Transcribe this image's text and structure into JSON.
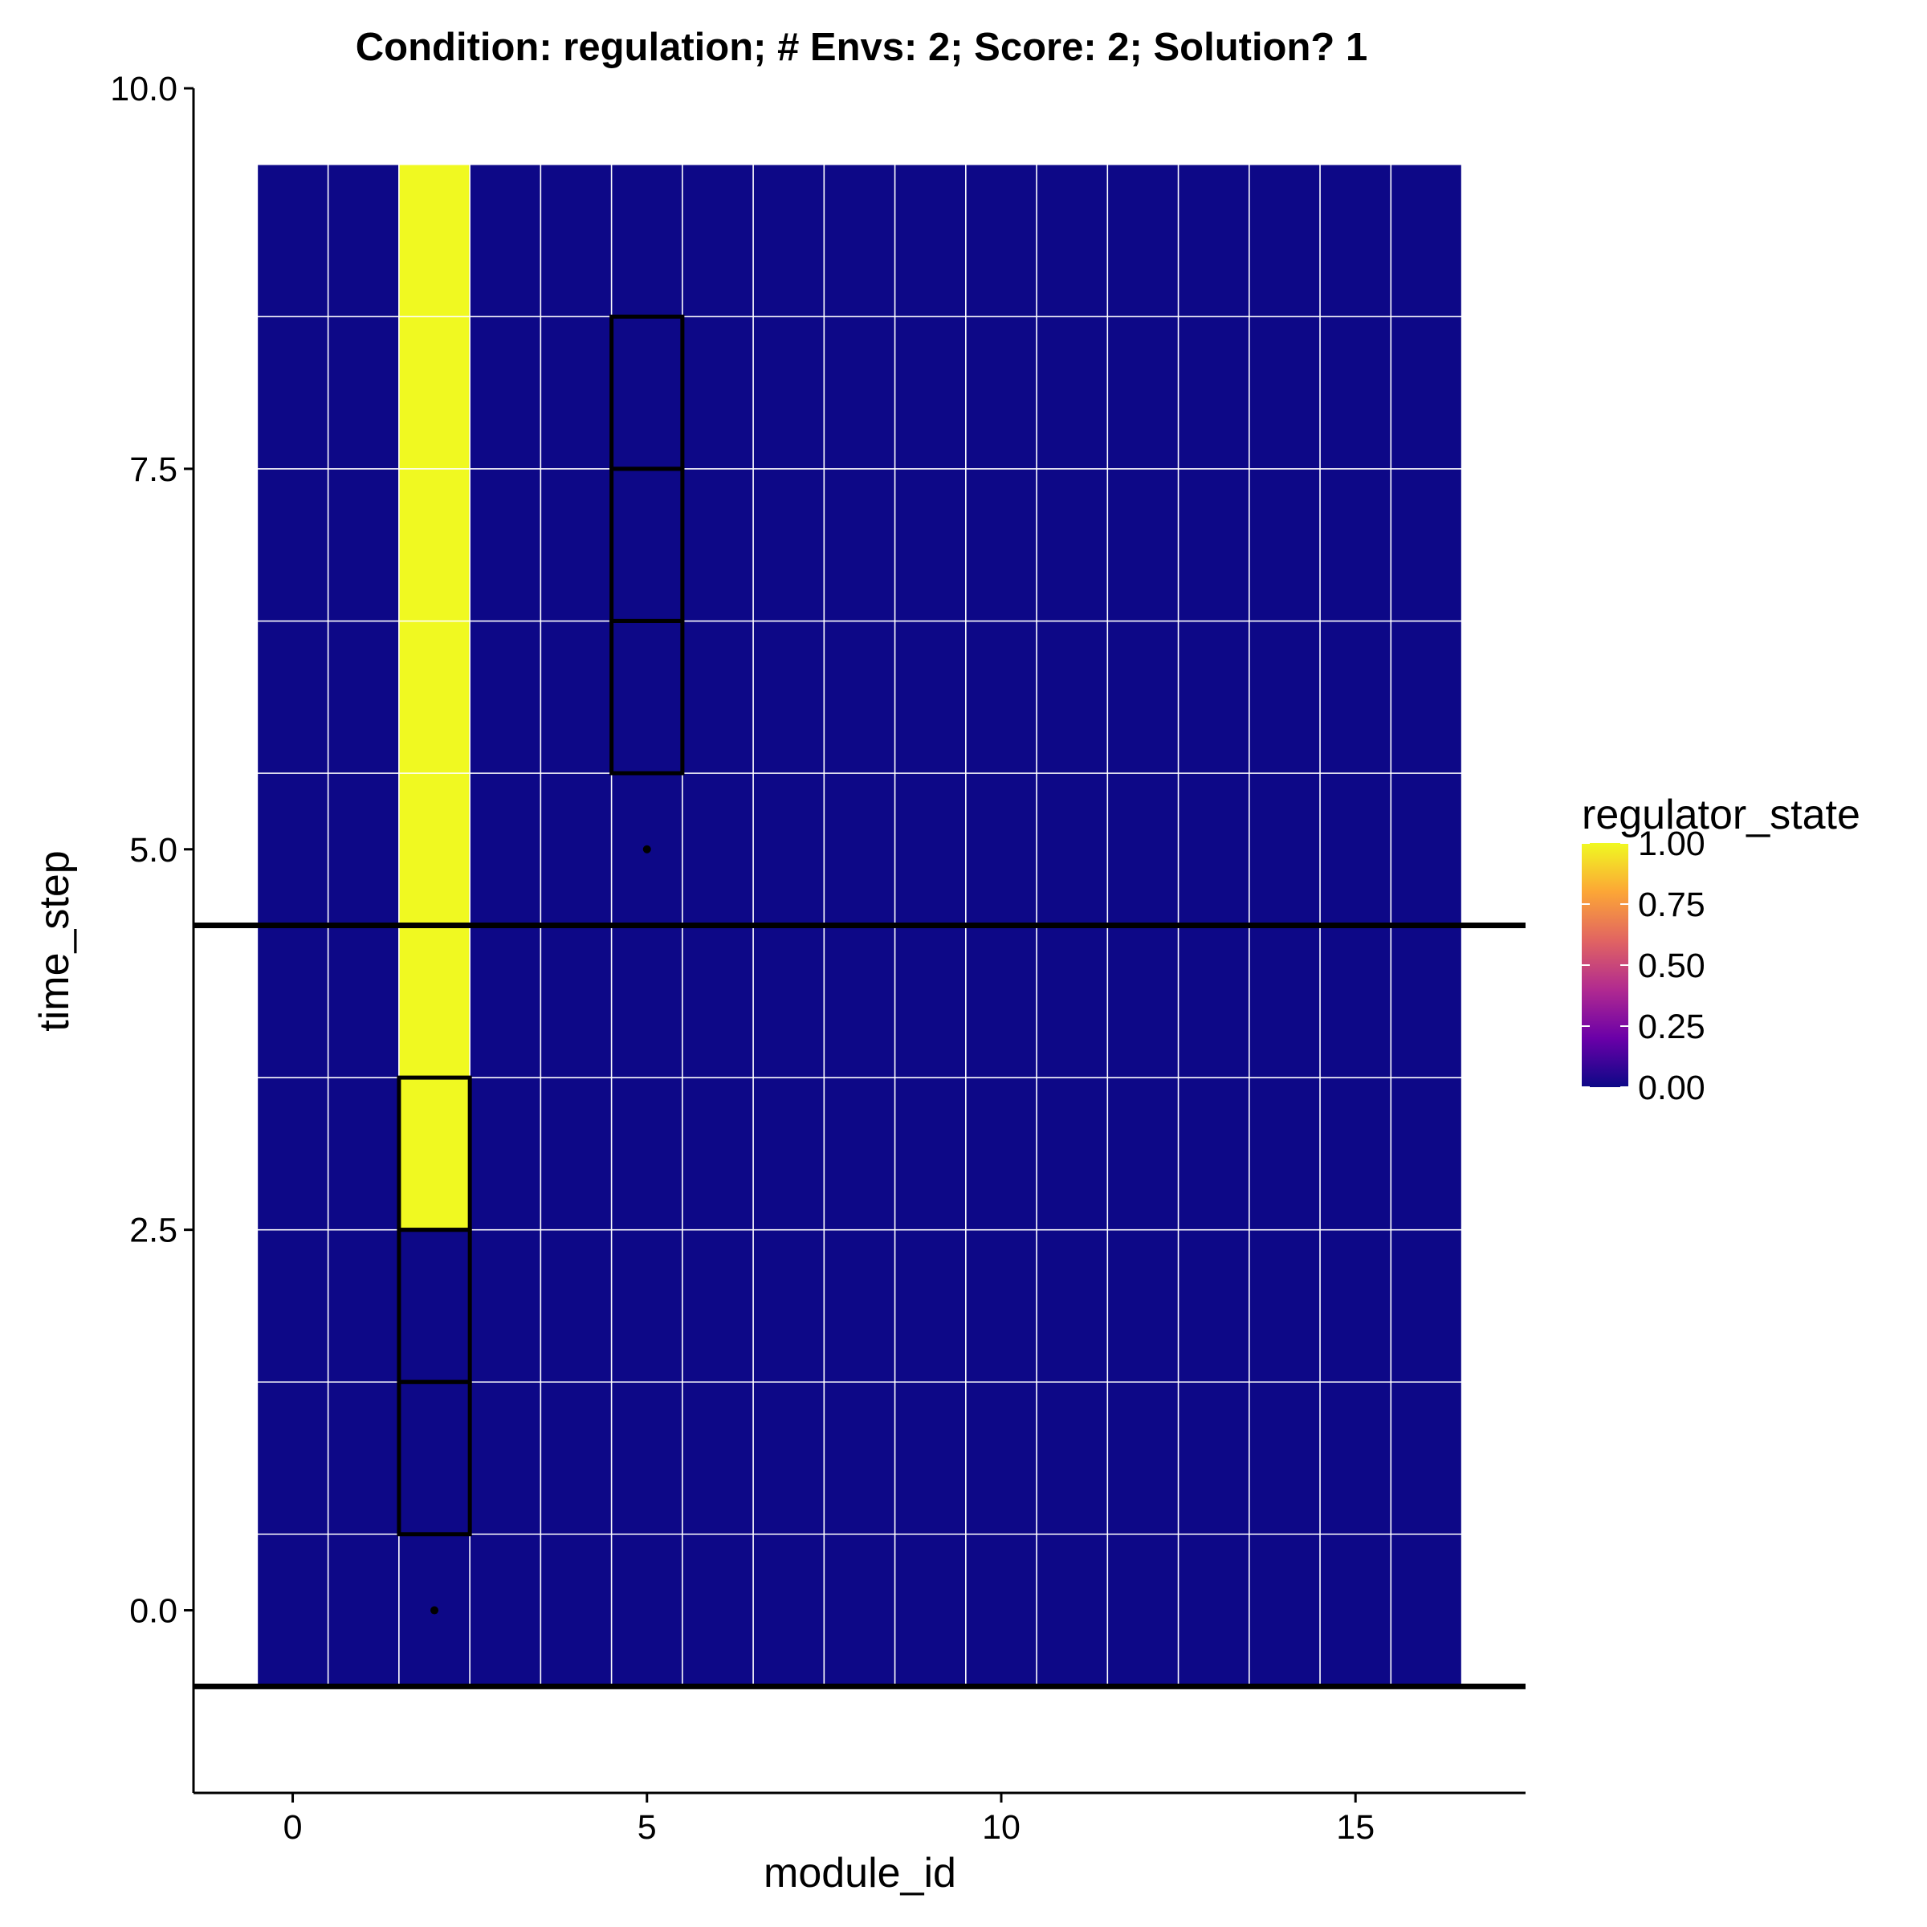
{
  "chart_data": {
    "type": "heatmap",
    "title": "Condition: regulation; # Envs: 2; Score: 2; Solution? 1",
    "xlabel": "module_id",
    "ylabel": "time_step",
    "xlim": [
      -1.4,
      17.4
    ],
    "ylim": [
      -1.2,
      10.0
    ],
    "x_ticks": [
      0,
      5,
      10,
      15
    ],
    "x_tick_labels": [
      "0",
      "5",
      "10",
      "15"
    ],
    "y_ticks": [
      0,
      2.5,
      5,
      7.5,
      10
    ],
    "y_tick_labels": [
      "0.0",
      "2.5",
      "5.0",
      "7.5",
      "10.0"
    ],
    "modules": [
      0,
      1,
      2,
      3,
      4,
      5,
      6,
      7,
      8,
      9,
      10,
      11,
      12,
      13,
      14,
      15,
      16
    ],
    "time_steps": [
      0,
      1,
      2,
      3,
      4,
      5,
      6,
      7,
      8,
      9
    ],
    "high_cells": [
      [
        2,
        3
      ],
      [
        2,
        4
      ],
      [
        2,
        5
      ],
      [
        2,
        6
      ],
      [
        2,
        7
      ],
      [
        2,
        8
      ],
      [
        2,
        9
      ]
    ],
    "low_value": 0,
    "high_value": 1,
    "highlighted_cells": [
      [
        2,
        1
      ],
      [
        2,
        2
      ],
      [
        2,
        3
      ],
      [
        5,
        6
      ],
      [
        5,
        7
      ],
      [
        5,
        8
      ]
    ],
    "marker_points": [
      [
        2,
        0
      ],
      [
        5,
        5
      ]
    ],
    "horizontal_lines": [
      -0.5,
      4.5
    ],
    "color_low": "#0d0887",
    "color_high": "#f0f921",
    "grid": false,
    "legend": {
      "title": "regulator_state",
      "position": "right",
      "labels": [
        "1.00",
        "0.75",
        "0.50",
        "0.25",
        "0.00"
      ],
      "values": [
        1.0,
        0.75,
        0.5,
        0.25,
        0.0
      ],
      "colors": [
        "#0d0887",
        "#6a00a8",
        "#b12a90",
        "#e16462",
        "#fca636",
        "#f0f921"
      ]
    }
  }
}
